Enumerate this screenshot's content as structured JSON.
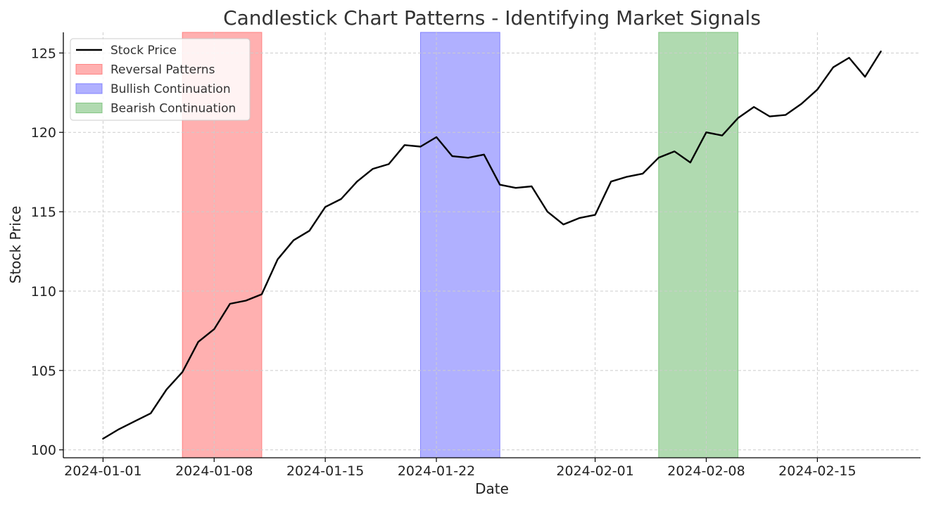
{
  "chart_data": {
    "type": "line",
    "title": "Candlestick Chart Patterns - Identifying Market Signals",
    "xlabel": "Date",
    "ylabel": "Stock Price",
    "x_range": [
      "2024-01-01",
      "2024-02-19"
    ],
    "ylim": [
      99.5,
      126.3
    ],
    "grid": true,
    "legend_position": "top-left",
    "x_ticks": [
      "2024-01-01",
      "2024-01-08",
      "2024-01-15",
      "2024-01-22",
      "2024-02-01",
      "2024-02-08",
      "2024-02-15"
    ],
    "y_ticks": [
      100,
      105,
      110,
      115,
      120,
      125
    ],
    "series": [
      {
        "name": "Stock Price",
        "color": "#000000",
        "x": [
          "2024-01-01",
          "2024-01-02",
          "2024-01-03",
          "2024-01-04",
          "2024-01-05",
          "2024-01-06",
          "2024-01-07",
          "2024-01-08",
          "2024-01-09",
          "2024-01-10",
          "2024-01-11",
          "2024-01-12",
          "2024-01-13",
          "2024-01-14",
          "2024-01-15",
          "2024-01-16",
          "2024-01-17",
          "2024-01-18",
          "2024-01-19",
          "2024-01-20",
          "2024-01-21",
          "2024-01-22",
          "2024-01-23",
          "2024-01-24",
          "2024-01-25",
          "2024-01-26",
          "2024-01-27",
          "2024-01-28",
          "2024-01-29",
          "2024-01-30",
          "2024-01-31",
          "2024-02-01",
          "2024-02-02",
          "2024-02-03",
          "2024-02-04",
          "2024-02-05",
          "2024-02-06",
          "2024-02-07",
          "2024-02-08",
          "2024-02-09",
          "2024-02-10",
          "2024-02-11",
          "2024-02-12",
          "2024-02-13",
          "2024-02-14",
          "2024-02-15",
          "2024-02-16",
          "2024-02-17",
          "2024-02-18",
          "2024-02-19"
        ],
        "values": [
          100.7,
          101.3,
          101.8,
          102.3,
          103.8,
          104.9,
          106.8,
          107.6,
          109.2,
          109.4,
          109.8,
          112.0,
          113.2,
          113.8,
          115.3,
          115.8,
          116.9,
          117.7,
          118.0,
          119.2,
          119.1,
          119.7,
          118.5,
          118.4,
          118.6,
          116.7,
          116.5,
          116.6,
          115.0,
          114.2,
          114.6,
          114.8,
          116.9,
          117.2,
          117.4,
          118.4,
          118.8,
          118.1,
          120.0,
          119.8,
          120.9,
          121.6,
          121.0,
          121.1,
          121.8,
          122.7,
          124.1,
          124.7,
          123.5,
          125.1
        ]
      }
    ],
    "highlight_regions": [
      {
        "name": "Reversal Patterns",
        "start": "2024-01-06",
        "end": "2024-01-11",
        "color": "#ff7070"
      },
      {
        "name": "Bullish Continuation",
        "start": "2024-01-21",
        "end": "2024-01-26",
        "color": "#7070ff"
      },
      {
        "name": "Bearish Continuation",
        "start": "2024-02-05",
        "end": "2024-02-10",
        "color": "#70bb70"
      }
    ]
  }
}
